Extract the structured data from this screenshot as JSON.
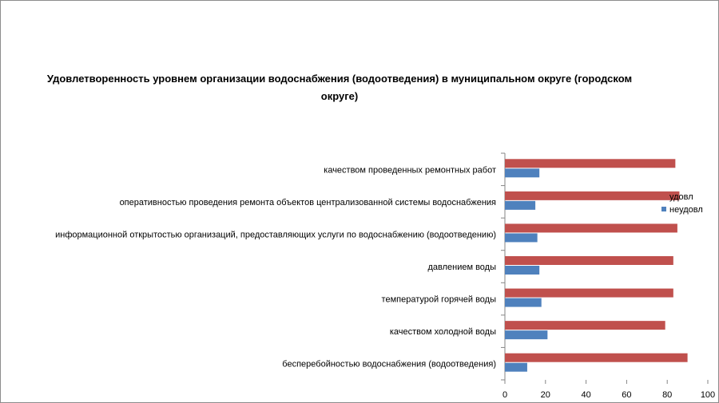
{
  "chart_data": {
    "type": "bar",
    "orientation": "horizontal",
    "title": "Удовлетворенность уровнем организации водоснабжения (водоотведения) в муниципальном округе (городском округе)",
    "categories": [
      "качеством проведенных ремонтных работ",
      "оперативностью проведения ремонта объектов централизованной системы водоснабжения",
      "информационной открытостью организаций, предоставляющих услуги по водоснабжению (водоотведению)",
      "давлением воды",
      "температурой горячей воды",
      "качеством холодной воды",
      "бесперебойностью водоснабжения (водоотведения)"
    ],
    "series": [
      {
        "name": "удовл",
        "color": "#C0504D",
        "values": [
          84,
          86,
          85,
          83,
          83,
          79,
          90
        ]
      },
      {
        "name": "неудовл",
        "color": "#4F81BD",
        "values": [
          17,
          15,
          16,
          17,
          18,
          21,
          11
        ]
      }
    ],
    "xlim": [
      0,
      100
    ],
    "xticks": [
      0,
      20,
      40,
      60,
      80,
      100
    ],
    "grid": false,
    "legend": "right"
  }
}
